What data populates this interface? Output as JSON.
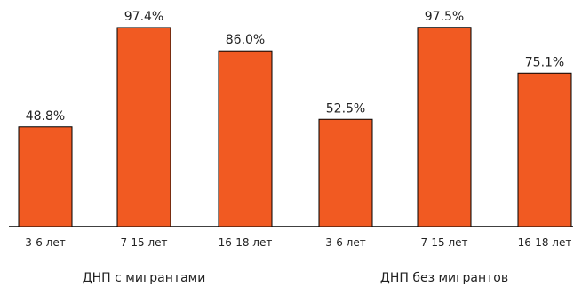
{
  "chart_data": {
    "type": "bar",
    "categories": [
      "3-6 лет",
      "7-15 лет",
      "16-18 лет",
      "3-6 лет",
      "7-15 лет",
      "16-18 лет"
    ],
    "value_labels": [
      "48.8%",
      "97.4%",
      "86.0%",
      "52.5%",
      "97.5%",
      "75.1%"
    ],
    "values": [
      48.8,
      97.4,
      86.0,
      52.5,
      97.5,
      75.1
    ],
    "groups": [
      {
        "label": "ДНП с мигрантами",
        "categories": [
          "3-6 лет",
          "7-15 лет",
          "16-18 лет"
        ]
      },
      {
        "label": "ДНП без мигрантов",
        "categories": [
          "3-6 лет",
          "7-15 лет",
          "16-18 лет"
        ]
      }
    ],
    "ylim": [
      0,
      100
    ],
    "grid": false,
    "bar_color": "#f15a22",
    "bar_outline": "#000000"
  }
}
